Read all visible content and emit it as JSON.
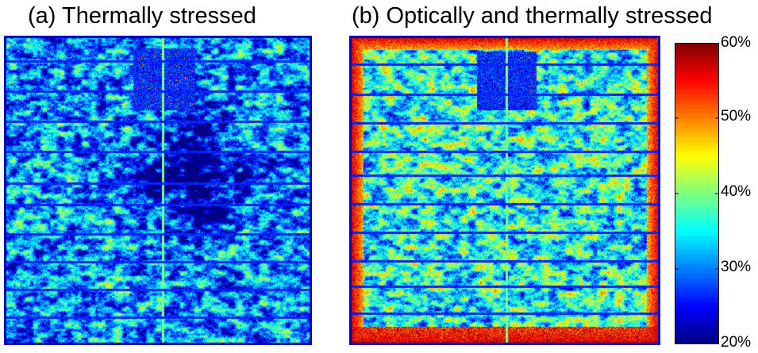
{
  "panels": [
    {
      "id": "a",
      "title": "(a) Thermally stressed",
      "stress": "thermal"
    },
    {
      "id": "b",
      "title": "(b) Optically and thermally stressed",
      "stress": "optical-thermal"
    }
  ],
  "colorbar": {
    "colormap": "jet",
    "range": [
      20,
      60
    ],
    "unit": "%",
    "ticks": [
      {
        "value": 60,
        "label": "60%"
      },
      {
        "value": 50,
        "label": "50%"
      },
      {
        "value": 40,
        "label": "40%"
      },
      {
        "value": 30,
        "label": "30%"
      },
      {
        "value": 20,
        "label": "20%"
      }
    ]
  }
}
